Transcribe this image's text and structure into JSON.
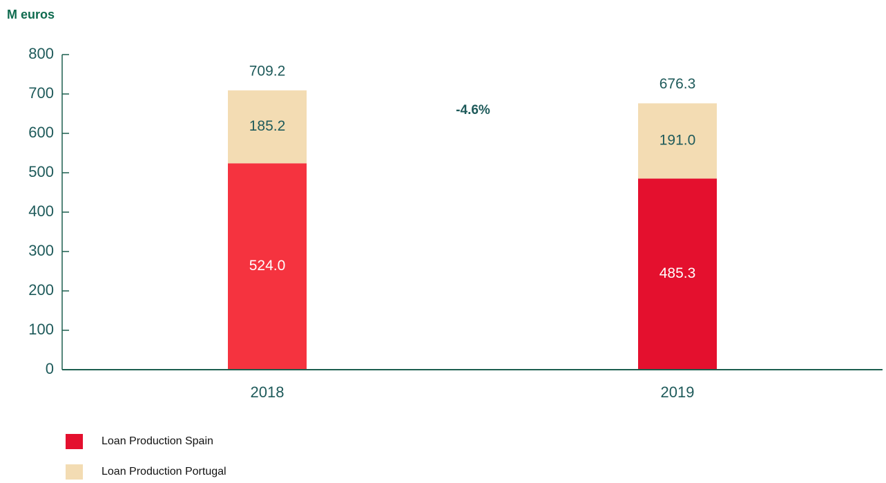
{
  "chart_data": {
    "type": "stacked_bar",
    "title": "M euros",
    "annotation": "-4.6%",
    "categories": [
      "2018",
      "2019"
    ],
    "series": [
      {
        "name": "Loan Production Spain",
        "color": "#e4102e",
        "colors": [
          "#f5333f",
          "#e4102e"
        ],
        "values": [
          524.0,
          485.3
        ],
        "value_labels": [
          "524.0",
          "485.3"
        ]
      },
      {
        "name": "Loan Production Portugal",
        "color": "#f3dcb3",
        "values": [
          185.2,
          191.0
        ],
        "value_labels": [
          "185.2",
          "191.0"
        ]
      }
    ],
    "totals": [
      709.2,
      676.3
    ],
    "ylim": [
      0,
      800
    ],
    "yticks": [
      0,
      100,
      200,
      300,
      400,
      500,
      600,
      700,
      800
    ],
    "grid": false
  }
}
